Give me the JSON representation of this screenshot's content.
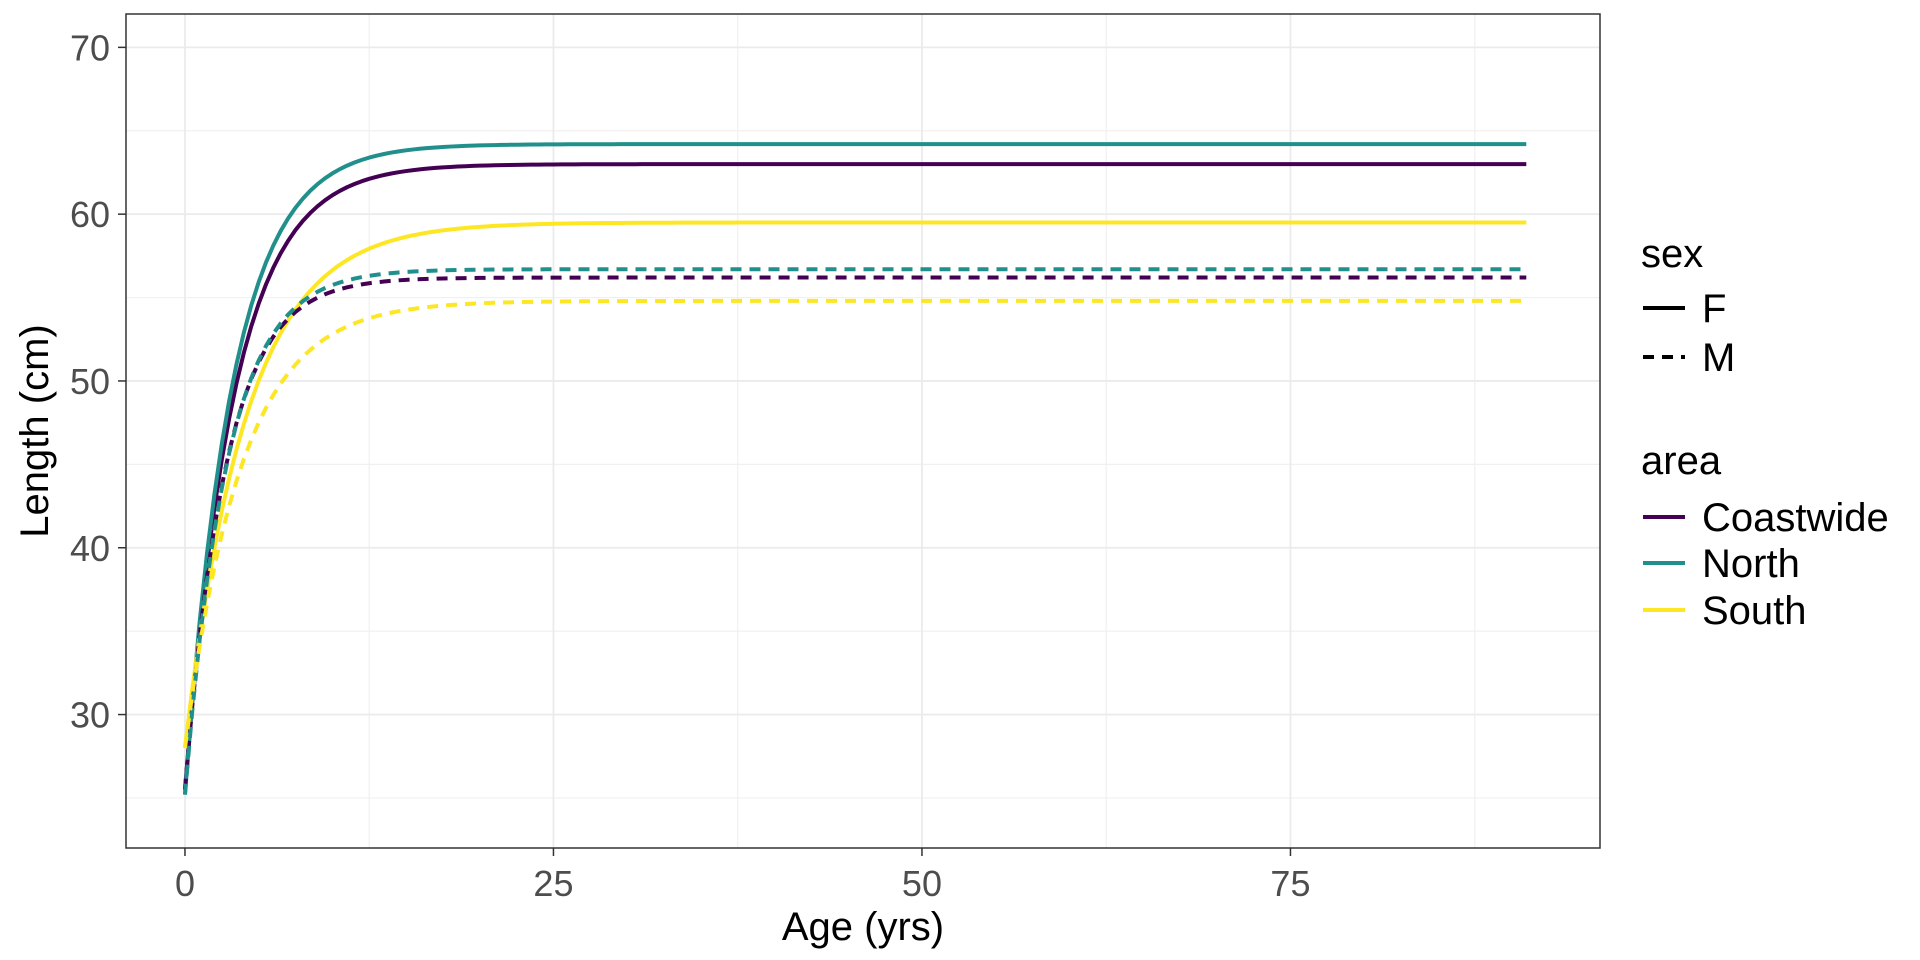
{
  "chart_data": {
    "type": "line",
    "xlabel": "Age (yrs)",
    "ylabel": "Length (cm)",
    "xlim": [
      -4,
      96
    ],
    "ylim": [
      22,
      72
    ],
    "x_ticks": [
      0,
      25,
      50,
      75
    ],
    "x_tick_labels": [
      "0",
      "25",
      "50",
      "75"
    ],
    "y_ticks": [
      30,
      40,
      50,
      60,
      70
    ],
    "y_tick_labels": [
      "30",
      "40",
      "50",
      "60",
      "70"
    ],
    "grid": true,
    "legend_position": "right",
    "legends": {
      "sex": {
        "title": "sex",
        "entries": [
          {
            "label": "F",
            "linetype": "solid"
          },
          {
            "label": "M",
            "linetype": "dashed"
          }
        ]
      },
      "area": {
        "title": "area",
        "entries": [
          {
            "label": "Coastwide",
            "color": "#440154"
          },
          {
            "label": "North",
            "color": "#21908C"
          },
          {
            "label": "South",
            "color": "#FDE725"
          }
        ]
      }
    },
    "series": [
      {
        "area": "Coastwide",
        "sex": "F",
        "color": "#440154",
        "linetype": "solid",
        "L0": 25.5,
        "Linf": 63.0,
        "k": 0.3,
        "x_max": 91
      },
      {
        "area": "North",
        "sex": "F",
        "color": "#21908C",
        "linetype": "solid",
        "L0": 25.2,
        "Linf": 64.2,
        "k": 0.31,
        "x_max": 91
      },
      {
        "area": "South",
        "sex": "F",
        "color": "#FDE725",
        "linetype": "solid",
        "L0": 28.0,
        "Linf": 59.5,
        "k": 0.24,
        "x_max": 91
      },
      {
        "area": "Coastwide",
        "sex": "M",
        "color": "#440154",
        "linetype": "dashed",
        "L0": 25.5,
        "Linf": 56.2,
        "k": 0.36,
        "x_max": 91
      },
      {
        "area": "North",
        "sex": "M",
        "color": "#21908C",
        "linetype": "dashed",
        "L0": 25.2,
        "Linf": 56.7,
        "k": 0.35,
        "x_max": 91
      },
      {
        "area": "South",
        "sex": "M",
        "color": "#FDE725",
        "linetype": "dashed",
        "L0": 28.0,
        "Linf": 54.8,
        "k": 0.26,
        "x_max": 91
      }
    ]
  }
}
